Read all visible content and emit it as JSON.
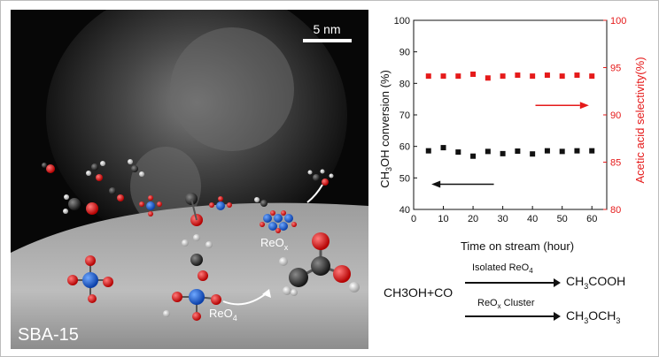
{
  "image_labels": {
    "scale_bar": "5 nm",
    "substrate": "SBA-15",
    "cluster_label": "ReO",
    "cluster_label_sub": "x",
    "monomer_label": "ReO",
    "monomer_label_sub": "4"
  },
  "chart_data": {
    "type": "scatter",
    "x": [
      5,
      10,
      15,
      20,
      25,
      30,
      35,
      40,
      45,
      50,
      55,
      60
    ],
    "series": [
      {
        "axis": "left",
        "color": "#111111",
        "marker": "square",
        "values": [
          58.6,
          59.6,
          58.2,
          56.9,
          58.4,
          57.7,
          58.5,
          57.6,
          58.6,
          58.4,
          58.6,
          58.6
        ]
      },
      {
        "axis": "right",
        "color": "#e51a1a",
        "marker": "square",
        "values": [
          94.1,
          94.1,
          94.1,
          94.3,
          93.9,
          94.1,
          94.2,
          94.1,
          94.2,
          94.1,
          94.2,
          94.1
        ]
      }
    ],
    "xlabel": "Time on stream (hour)",
    "ylabel_left_pre": "CH",
    "ylabel_left_sub": "3",
    "ylabel_left_post": "OH conversion (%)",
    "ylabel_right": "Acetic acid selectivity(%)",
    "xlim": [
      0,
      65
    ],
    "ylim_left": [
      40,
      100
    ],
    "ylim_right": [
      80,
      100
    ],
    "xticks": [
      0,
      10,
      20,
      30,
      40,
      50,
      60
    ],
    "yticks_left": [
      40,
      50,
      60,
      70,
      80,
      90,
      100
    ],
    "yticks_right": [
      80,
      85,
      90,
      95,
      100
    ],
    "grid": false,
    "arrows": [
      {
        "series": "left",
        "direction": "left",
        "color": "#111111"
      },
      {
        "series": "right",
        "direction": "right",
        "color": "#e51a1a"
      }
    ]
  },
  "reaction": {
    "reactants": "CH3OH+CO",
    "route1_label": "Isolated ReO",
    "route1_label_sub": "4",
    "product1_pre": "CH",
    "product1_sub": "3",
    "product1_post": "COOH",
    "route2_label_pre": "ReO",
    "route2_label_sub": "x",
    "route2_label_post": " Cluster",
    "product2_pre": "CH",
    "product2_sub": "3",
    "product2_mid": "OCH",
    "product2_sub2": "3"
  }
}
